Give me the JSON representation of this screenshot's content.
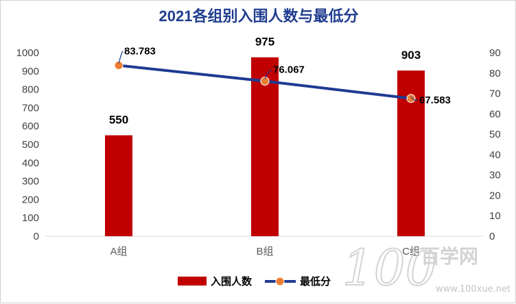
{
  "chart_data": {
    "type": "bar",
    "title": "2021各组别入围人数与最低分",
    "categories": [
      "A组",
      "B组",
      "C组"
    ],
    "series": [
      {
        "name": "入围人数",
        "type": "bar",
        "axis": "left",
        "values": [
          550,
          975,
          903
        ],
        "labels": [
          "550",
          "975",
          "903"
        ],
        "color": "#c00000"
      },
      {
        "name": "最低分",
        "type": "line",
        "axis": "right",
        "values": [
          83.783,
          76.067,
          67.583
        ],
        "labels": [
          "83.783",
          "76.067",
          "67.583"
        ],
        "color": "#1f3a93",
        "marker_color": "#ed7d31"
      }
    ],
    "y_left": {
      "min": 0,
      "max": 1000,
      "ticks": [
        "0",
        "100",
        "200",
        "300",
        "400",
        "500",
        "600",
        "700",
        "800",
        "900",
        "1000"
      ]
    },
    "y_right": {
      "min": 0,
      "max": 90,
      "ticks": [
        "0",
        "10",
        "20",
        "30",
        "40",
        "50",
        "60",
        "70",
        "80",
        "90"
      ]
    },
    "grid": false,
    "legend_position": "bottom"
  },
  "watermark": {
    "text_big": "100",
    "text_cn": "百学网",
    "url": "www.100xue.net"
  }
}
